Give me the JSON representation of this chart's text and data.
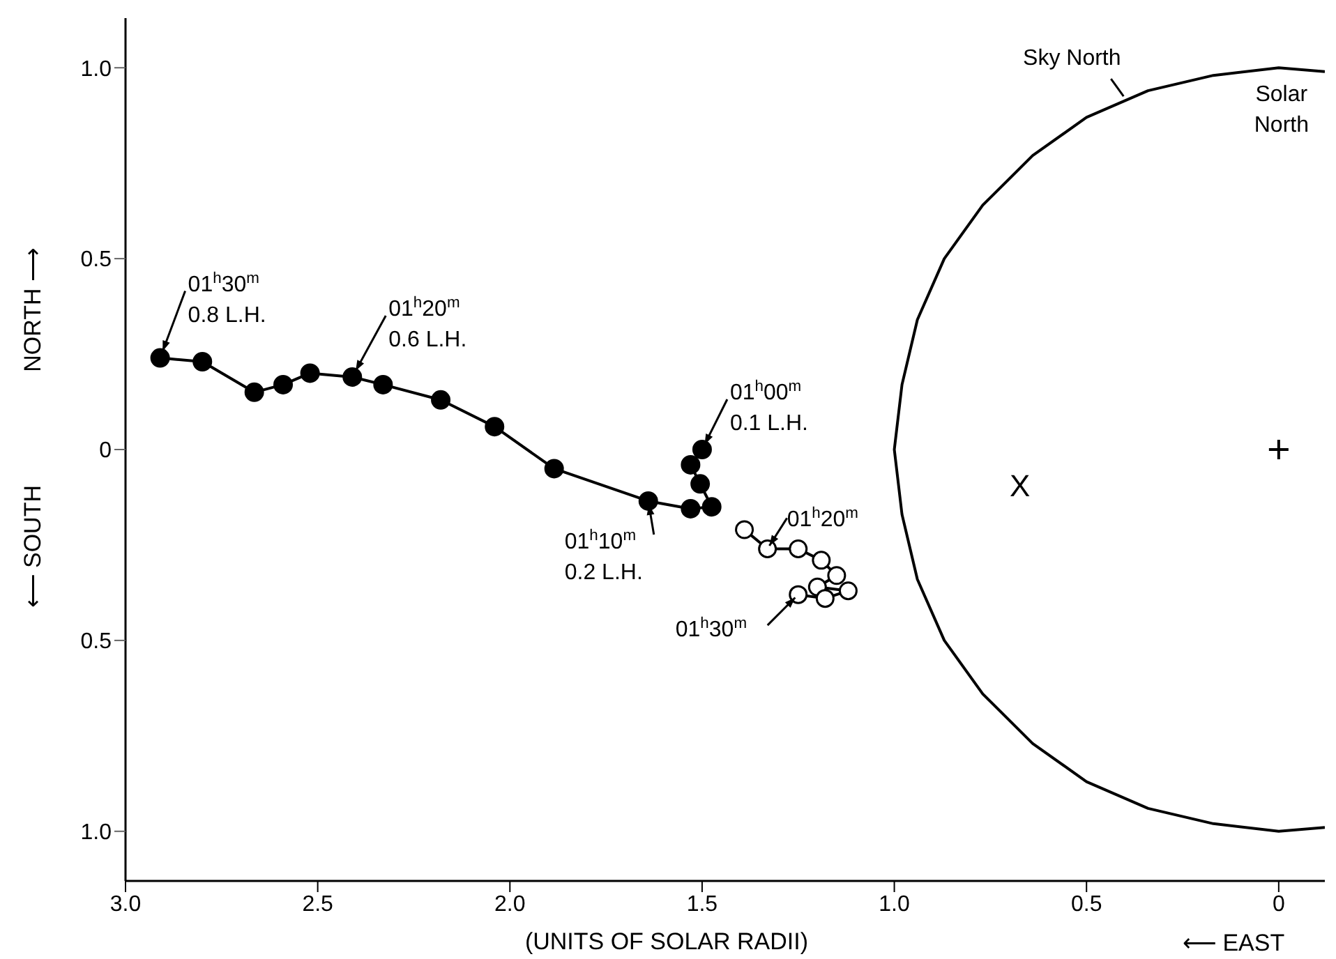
{
  "chart_data": {
    "type": "scatter",
    "xlabel": "(UNITS OF SOLAR RADII)",
    "xlim": [
      3.0,
      -0.12
    ],
    "xticks": [
      {
        "value": 3,
        "label": "3.0"
      },
      2.5,
      {
        "value": 2,
        "label": "2.0"
      },
      1.5,
      {
        "value": 1,
        "label": "1.0"
      },
      0.5,
      0
    ],
    "ylim": [
      -1.13,
      1.13
    ],
    "yticks": [
      {
        "value": -1,
        "label": "1.0"
      },
      {
        "value": -0.5,
        "label": "0.5"
      },
      0,
      0.5,
      {
        "value": 1,
        "label": "1.0"
      }
    ],
    "series": [
      {
        "type": "line",
        "marker": "circle",
        "color": "#000000",
        "x": [
          1.5,
          1.53,
          1.505,
          1.475,
          1.53,
          1.64,
          1.885,
          2.04,
          2.18,
          2.33,
          2.41,
          2.52,
          2.59,
          2.665,
          2.8,
          2.91
        ],
        "values": [
          0.0,
          -0.04,
          -0.09,
          -0.15,
          -0.155,
          -0.135,
          -0.05,
          0.06,
          0.13,
          0.17,
          0.19,
          0.2,
          0.17,
          0.15,
          0.23,
          0.24
        ]
      },
      {
        "type": "line",
        "marker": "circle-open",
        "color": "#000000",
        "x": [
          1.39,
          1.33,
          1.25,
          1.19,
          1.15,
          1.2,
          1.12,
          1.18,
          1.25
        ],
        "values": [
          -0.21,
          -0.26,
          -0.26,
          -0.29,
          -0.33,
          -0.36,
          -0.37,
          -0.39,
          -0.38
        ]
      },
      {
        "type": "line",
        "marker": "none",
        "color": "#000000",
        "x": [
          -0.12,
          0,
          0.17,
          0.34,
          0.5,
          0.64,
          0.77,
          0.87,
          0.94,
          0.98,
          1,
          0.98,
          0.94,
          0.87,
          0.77,
          0.64,
          0.5,
          0.34,
          0.17,
          0,
          -0.12
        ],
        "values": [
          0.99,
          1,
          0.98,
          0.94,
          0.87,
          0.77,
          0.64,
          0.5,
          0.34,
          0.17,
          0,
          -0.17,
          -0.34,
          -0.5,
          -0.64,
          -0.77,
          -0.87,
          -0.94,
          -0.98,
          -1,
          -0.99
        ]
      },
      {
        "marker": "cross",
        "color": "#000000",
        "x": [
          0
        ],
        "values": [
          0
        ]
      }
    ],
    "annotations": [
      {
        "text": "01$^{h}$30$^{m}$\n0.8 L.H.",
        "x": 2.91,
        "y": 0.24
      },
      {
        "text": "01$^{h}$20$^{m}$\n0.6 L.H.",
        "x": 2.41,
        "y": 0.19
      },
      {
        "text": "01$^{h}$00$^{m}$\n0.1 L.H.",
        "x": 1.5,
        "y": 0.0
      },
      {
        "text": "01$^{h}$10$^{m}$\n0.2 L.H.",
        "x": 1.64,
        "y": -0.135
      },
      {
        "text": "01$^{h}$20$^{m}$",
        "x": 1.33,
        "y": -0.26
      },
      {
        "text": "01$^{h}$30$^{m}$",
        "x": 1.25,
        "y": -0.38
      },
      {
        "text": "Sky North",
        "x": 0.4,
        "y": 0.92
      },
      {
        "text": "Solar\nNorth",
        "x": 0,
        "y": 1
      },
      "X",
      "NORTH ⟶",
      "⟵ SOUTH",
      "⟵ EAST"
    ]
  }
}
